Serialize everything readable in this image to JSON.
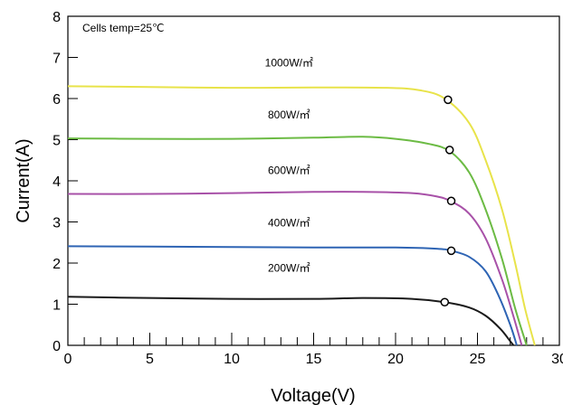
{
  "chart_data": {
    "type": "line",
    "title": "",
    "annotation": "Cells temp=25℃",
    "xlabel": "Voltage(V)",
    "ylabel": "Current(A)",
    "xlim": [
      0,
      30
    ],
    "ylim": [
      0,
      8
    ],
    "xticks": [
      0,
      5,
      10,
      15,
      20,
      25,
      30
    ],
    "yticks": [
      0,
      1,
      2,
      3,
      4,
      5,
      6,
      7,
      8
    ],
    "grid": false,
    "series": [
      {
        "name": "1000W/㎡",
        "color": "#e8e34a",
        "points": [
          [
            0,
            6.3
          ],
          [
            5,
            6.28
          ],
          [
            10,
            6.26
          ],
          [
            15,
            6.27
          ],
          [
            19.5,
            6.26
          ],
          [
            21.5,
            6.2
          ],
          [
            23,
            6.0
          ],
          [
            24.5,
            5.4
          ],
          [
            25.5,
            4.5
          ],
          [
            26.5,
            3.3
          ],
          [
            27.3,
            2.0
          ],
          [
            27.9,
            0.9
          ],
          [
            28.5,
            0
          ]
        ],
        "mpp": [
          23.2,
          5.97
        ]
      },
      {
        "name": "800W/㎡",
        "color": "#6cbb44",
        "points": [
          [
            0,
            5.03
          ],
          [
            5,
            5.02
          ],
          [
            10,
            5.02
          ],
          [
            15,
            5.05
          ],
          [
            18,
            5.07
          ],
          [
            20,
            5.02
          ],
          [
            22,
            4.9
          ],
          [
            23.3,
            4.72
          ],
          [
            24.5,
            4.2
          ],
          [
            25.5,
            3.3
          ],
          [
            26.5,
            2.1
          ],
          [
            27.3,
            0.9
          ],
          [
            28.0,
            0
          ]
        ],
        "mpp": [
          23.3,
          4.75
        ]
      },
      {
        "name": "600W/㎡",
        "color": "#a851a8",
        "points": [
          [
            0,
            3.68
          ],
          [
            5,
            3.68
          ],
          [
            10,
            3.7
          ],
          [
            15,
            3.73
          ],
          [
            18,
            3.73
          ],
          [
            21,
            3.7
          ],
          [
            22.5,
            3.62
          ],
          [
            23.4,
            3.5
          ],
          [
            24.5,
            3.2
          ],
          [
            25.5,
            2.6
          ],
          [
            26.5,
            1.6
          ],
          [
            27.2,
            0.7
          ],
          [
            27.7,
            0
          ]
        ],
        "mpp": [
          23.4,
          3.51
        ]
      },
      {
        "name": "400W/㎡",
        "color": "#2e64b4",
        "points": [
          [
            0,
            2.41
          ],
          [
            5,
            2.4
          ],
          [
            10,
            2.39
          ],
          [
            15,
            2.38
          ],
          [
            20,
            2.38
          ],
          [
            22.5,
            2.35
          ],
          [
            23.4,
            2.3
          ],
          [
            24.5,
            2.15
          ],
          [
            25.5,
            1.8
          ],
          [
            26.3,
            1.2
          ],
          [
            27.0,
            0.5
          ],
          [
            27.4,
            0
          ]
        ],
        "mpp": [
          23.4,
          2.3
        ]
      },
      {
        "name": "200W/㎡",
        "color": "#1a1a1a",
        "points": [
          [
            0,
            1.18
          ],
          [
            5,
            1.15
          ],
          [
            10,
            1.13
          ],
          [
            15,
            1.13
          ],
          [
            18,
            1.15
          ],
          [
            21,
            1.13
          ],
          [
            23,
            1.05
          ],
          [
            24.5,
            0.92
          ],
          [
            25.5,
            0.72
          ],
          [
            26.4,
            0.4
          ],
          [
            27.0,
            0.1
          ],
          [
            27.2,
            0
          ]
        ],
        "mpp": [
          23.0,
          1.05
        ]
      }
    ]
  }
}
